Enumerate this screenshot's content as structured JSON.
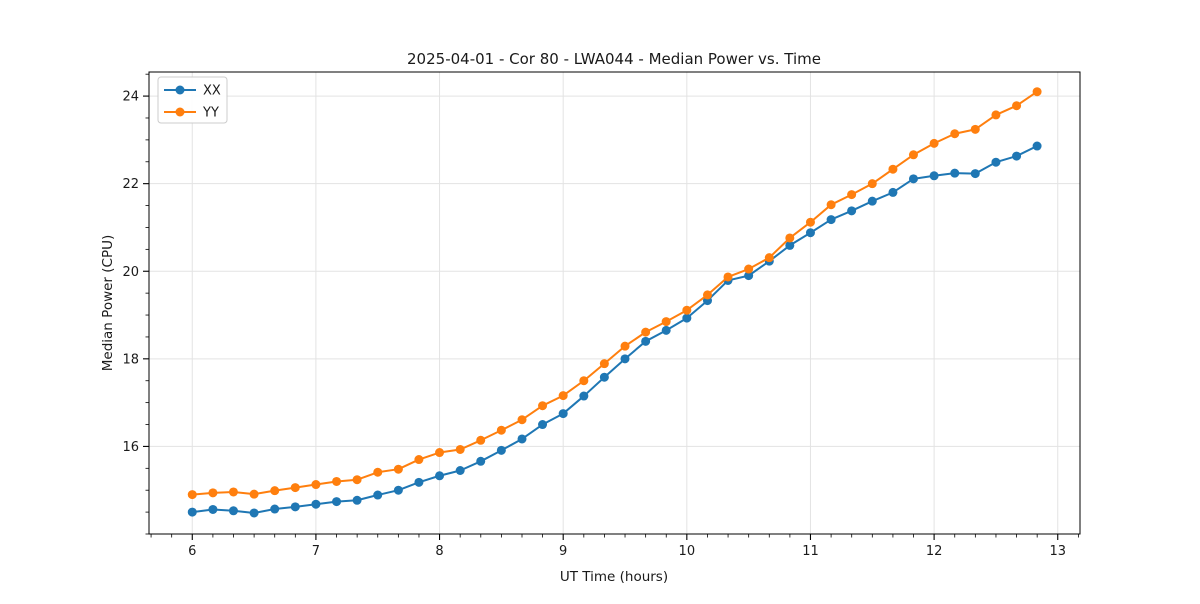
{
  "chart_data": {
    "type": "line",
    "title": "2025-04-01 - Cor 80 - LWA044 - Median Power vs. Time",
    "xlabel": "UT Time (hours)",
    "ylabel": "Median Power (CPU)",
    "x": [
      6.0,
      6.167,
      6.333,
      6.5,
      6.667,
      6.833,
      7.0,
      7.167,
      7.333,
      7.5,
      7.667,
      7.833,
      8.0,
      8.167,
      8.333,
      8.5,
      8.667,
      8.833,
      9.0,
      9.167,
      9.333,
      9.5,
      9.667,
      9.833,
      10.0,
      10.167,
      10.333,
      10.5,
      10.667,
      10.833,
      11.0,
      11.167,
      11.333,
      11.5,
      11.667,
      11.833,
      12.0,
      12.167,
      12.333,
      12.5,
      12.667,
      12.833
    ],
    "series": [
      {
        "name": "XX",
        "color": "#1f77b4",
        "values": [
          14.5,
          14.56,
          14.53,
          14.48,
          14.57,
          14.62,
          14.68,
          14.74,
          14.77,
          14.89,
          15.0,
          15.18,
          15.33,
          15.45,
          15.66,
          15.91,
          16.17,
          16.5,
          16.75,
          17.15,
          17.58,
          18.0,
          18.4,
          18.65,
          18.93,
          19.33,
          19.79,
          19.9,
          20.23,
          20.59,
          20.88,
          21.18,
          21.38,
          21.6,
          21.8,
          22.11,
          22.18,
          22.24,
          22.23,
          22.49,
          22.63,
          22.86
        ]
      },
      {
        "name": "YY",
        "color": "#ff7f0e",
        "values": [
          14.9,
          14.94,
          14.96,
          14.91,
          14.99,
          15.06,
          15.13,
          15.2,
          15.24,
          15.41,
          15.48,
          15.7,
          15.86,
          15.93,
          16.14,
          16.37,
          16.61,
          16.93,
          17.16,
          17.5,
          17.89,
          18.29,
          18.61,
          18.85,
          19.11,
          19.46,
          19.87,
          20.05,
          20.31,
          20.76,
          21.12,
          21.52,
          21.75,
          22.0,
          22.33,
          22.66,
          22.92,
          23.14,
          23.24,
          23.57,
          23.78,
          24.1
        ]
      }
    ],
    "xlim": [
      5.65,
      13.18
    ],
    "ylim": [
      14.0,
      24.55
    ],
    "xticks": [
      6,
      7,
      8,
      9,
      10,
      11,
      12,
      13
    ],
    "yticks": [
      16,
      18,
      20,
      22,
      24
    ],
    "x_minor_step": 0.16667,
    "y_minor_step": 0.5,
    "grid": true,
    "legend_position": "upper left",
    "marker": "o",
    "marker_radius": 4.5,
    "line_width": 2,
    "colors": {
      "background": "#ffffff",
      "grid": "#e3e3e3",
      "spine": "#000000",
      "text": "#1a1a1a"
    }
  }
}
